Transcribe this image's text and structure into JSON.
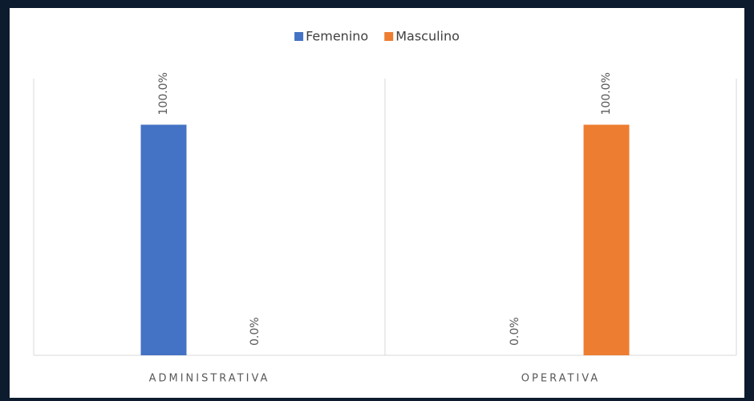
{
  "chart_data": {
    "type": "bar",
    "categories": [
      "ADMINISTRATIVA",
      "OPERATIVA"
    ],
    "series": [
      {
        "name": "Femenino",
        "color": "#4472c4",
        "values": [
          100,
          0
        ],
        "value_labels": [
          "100.0%",
          "0.0%"
        ]
      },
      {
        "name": "Masculino",
        "color": "#ed7d31",
        "values": [
          0,
          100
        ],
        "value_labels": [
          "0.0%",
          "100.0%"
        ]
      }
    ],
    "ylim": [
      0,
      120
    ],
    "legend": "top"
  }
}
